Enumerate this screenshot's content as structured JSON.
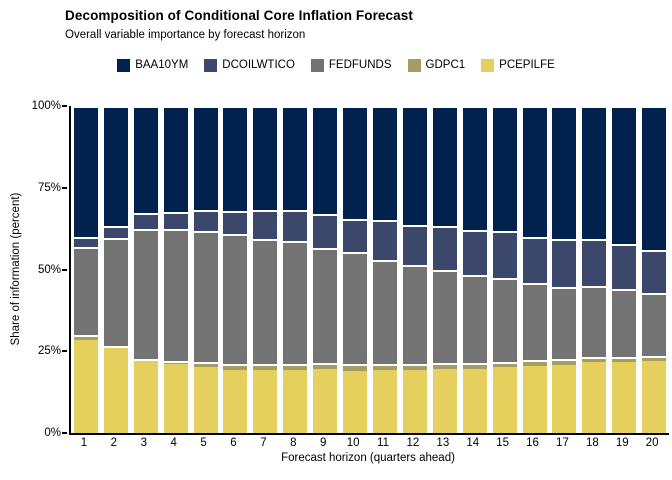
{
  "header": {
    "title": "Decomposition of Conditional Core Inflation Forecast",
    "subtitle": "Overall variable importance by forecast horizon"
  },
  "axes": {
    "x_title": "Forecast horizon (quarters ahead)",
    "y_title": "Share of information (percent)",
    "y_tick_labels": [
      "0%",
      "25%",
      "50%",
      "75%",
      "100%"
    ],
    "y_tick_values": [
      0,
      25,
      50,
      75,
      100
    ]
  },
  "chart_data": {
    "type": "bar",
    "subtype": "stacked-percent",
    "title": "Decomposition of Conditional Core Inflation Forecast",
    "subtitle": "Overall variable importance by forecast horizon",
    "xlabel": "Forecast horizon (quarters ahead)",
    "ylabel": "Share of information (percent)",
    "ylim": [
      0,
      100
    ],
    "grid": false,
    "legend_position": "top-center",
    "categories": [
      "1",
      "2",
      "3",
      "4",
      "5",
      "6",
      "7",
      "8",
      "9",
      "10",
      "11",
      "12",
      "13",
      "14",
      "15",
      "16",
      "17",
      "18",
      "19",
      "20"
    ],
    "stack_order_bottom_to_top": [
      "PCEPILFE",
      "GDPC1",
      "FEDFUNDS",
      "DCOILWTICO",
      "BAA10YM"
    ],
    "series": [
      {
        "name": "BAA10YM",
        "color": "#01224f",
        "values": [
          39.9,
          36.8,
          32.7,
          32.5,
          31.7,
          32.0,
          31.7,
          31.9,
          33.0,
          34.4,
          34.8,
          36.4,
          36.6,
          38.0,
          38.2,
          40.2,
          40.7,
          40.7,
          42.3,
          44.0
        ]
      },
      {
        "name": "DCOILWTICO",
        "color": "#3c486b",
        "values": [
          3.3,
          3.6,
          5.0,
          5.2,
          6.4,
          7.1,
          9.1,
          9.5,
          10.5,
          10.3,
          12.4,
          12.3,
          13.6,
          13.8,
          14.3,
          14.0,
          14.6,
          14.4,
          13.6,
          13.3
        ]
      },
      {
        "name": "FEDFUNDS",
        "color": "#737373",
        "values": [
          26.7,
          32.9,
          39.7,
          40.3,
          40.2,
          39.8,
          38.1,
          37.5,
          35.2,
          34.2,
          31.6,
          30.3,
          28.5,
          26.8,
          25.7,
          23.6,
          22.2,
          21.7,
          20.8,
          19.2
        ]
      },
      {
        "name": "GDPC1",
        "color": "#a79c64",
        "values": [
          1.8,
          0.8,
          0.4,
          0.8,
          1.6,
          1.7,
          1.8,
          1.8,
          1.8,
          2.0,
          2.0,
          1.8,
          1.8,
          1.7,
          1.7,
          1.7,
          1.6,
          1.6,
          1.6,
          1.5
        ]
      },
      {
        "name": "PCEPILFE",
        "color": "#e5d05e",
        "values": [
          28.3,
          25.9,
          22.2,
          21.2,
          20.1,
          19.4,
          19.3,
          19.3,
          19.5,
          19.1,
          19.2,
          19.2,
          19.5,
          19.7,
          20.1,
          20.5,
          20.9,
          21.6,
          21.7,
          22.0
        ]
      }
    ],
    "colors": {
      "BAA10YM": "#01224f",
      "DCOILWTICO": "#3c486b",
      "FEDFUNDS": "#737373",
      "GDPC1": "#a79c64",
      "PCEPILFE": "#e5d05e",
      "separator": "#ffffff",
      "axis": "#000000",
      "background": "#ffffff"
    }
  }
}
